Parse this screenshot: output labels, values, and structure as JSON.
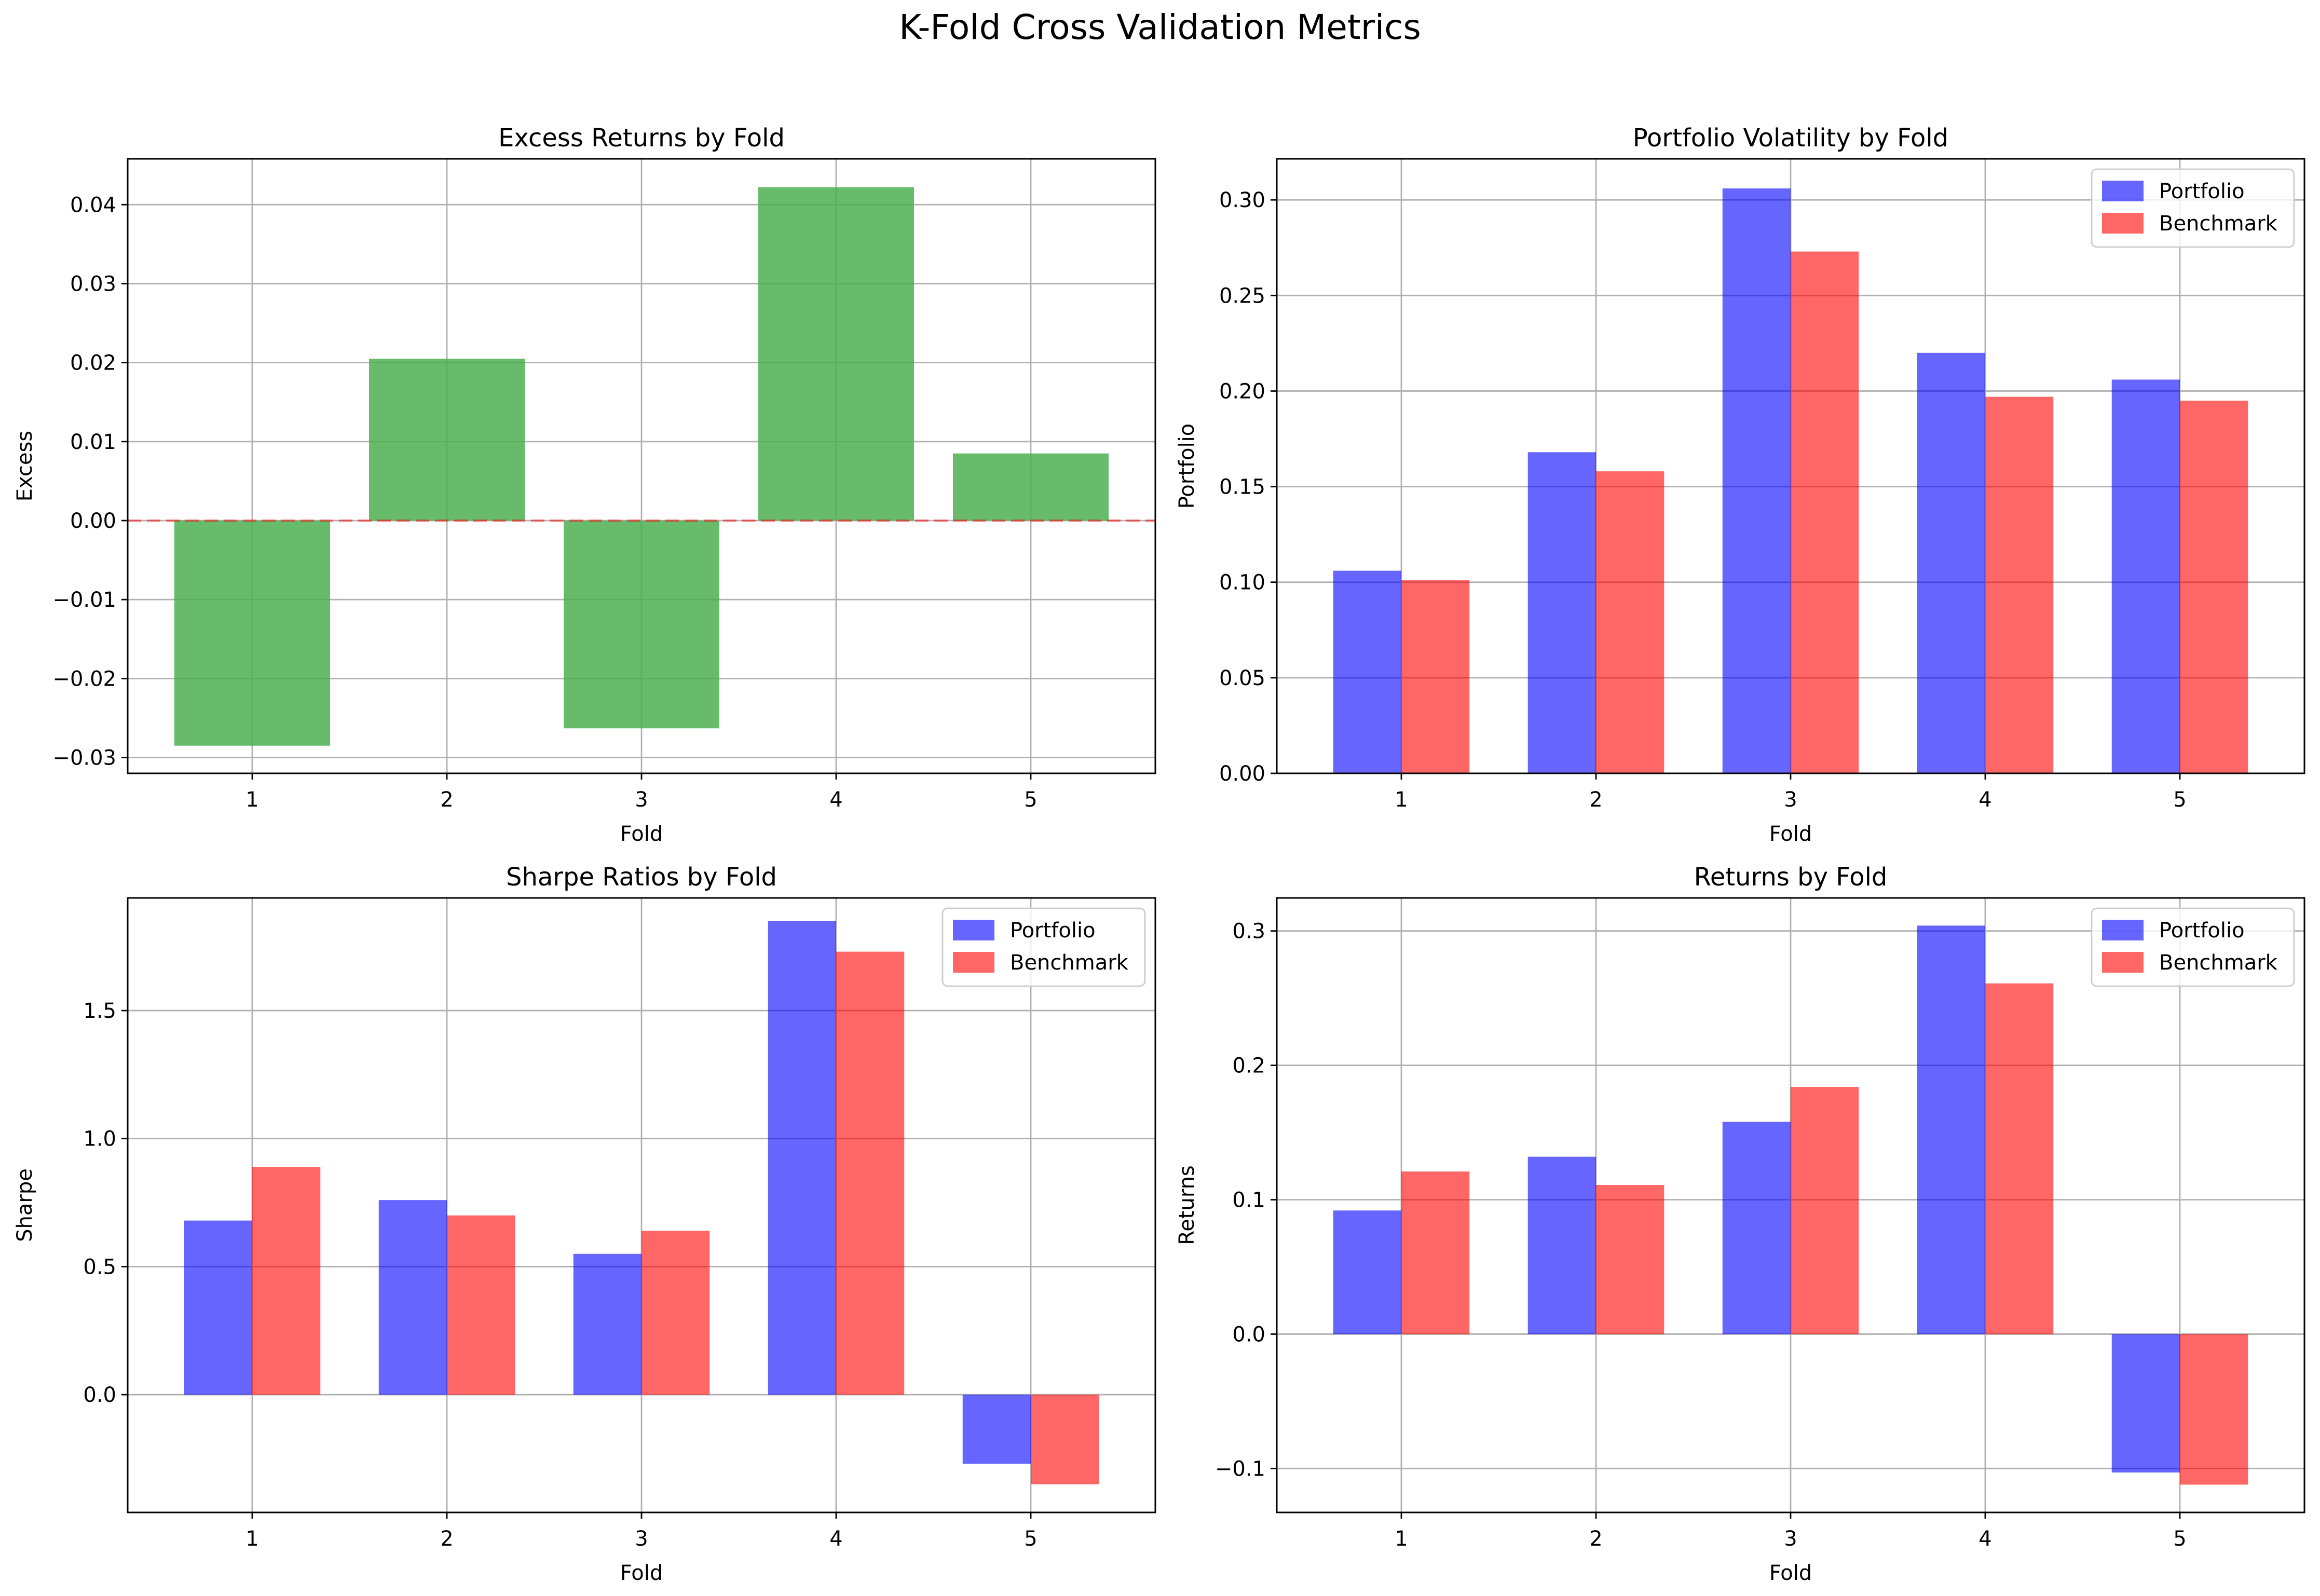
{
  "figure_title": "K-Fold Cross Validation Metrics",
  "colors": {
    "bar_single": "#4CAF50",
    "portfolio": "#0000ff",
    "benchmark": "#ff0000",
    "zero_line": "#ff0000",
    "grid": "#b0b0b0"
  },
  "chart_data": [
    {
      "type": "bar",
      "title": "Excess Returns by Fold",
      "xlabel": "Fold",
      "ylabel": "Excess",
      "categories": [
        "1",
        "2",
        "3",
        "4",
        "5"
      ],
      "values": [
        -0.0285,
        0.0205,
        -0.0263,
        0.0422,
        0.0085
      ],
      "ylim": [
        -0.032,
        0.0458
      ],
      "yticks": [
        -0.03,
        -0.02,
        -0.01,
        0.0,
        0.01,
        0.02,
        0.03,
        0.04
      ],
      "ytick_labels": [
        "−0.03",
        "−0.02",
        "−0.01",
        "0.00",
        "0.01",
        "0.02",
        "0.03",
        "0.04"
      ],
      "zero_line": true,
      "grid": true,
      "legend": "none"
    },
    {
      "type": "bar",
      "title": "Portfolio Volatility by Fold",
      "xlabel": "Fold",
      "ylabel": "Portfolio",
      "categories": [
        "1",
        "2",
        "3",
        "4",
        "5"
      ],
      "series": [
        {
          "name": "Portfolio",
          "values": [
            0.106,
            0.168,
            0.306,
            0.22,
            0.206
          ]
        },
        {
          "name": "Benchmark",
          "values": [
            0.101,
            0.158,
            0.273,
            0.197,
            0.195
          ]
        }
      ],
      "ylim": [
        0.0,
        0.3215
      ],
      "yticks": [
        0.0,
        0.05,
        0.1,
        0.15,
        0.2,
        0.25,
        0.3
      ],
      "ytick_labels": [
        "0.00",
        "0.05",
        "0.10",
        "0.15",
        "0.20",
        "0.25",
        "0.30"
      ],
      "grid": true,
      "legend": "top-right"
    },
    {
      "type": "bar",
      "title": "Sharpe Ratios by Fold",
      "xlabel": "Fold",
      "ylabel": "Sharpe",
      "categories": [
        "1",
        "2",
        "3",
        "4",
        "5"
      ],
      "series": [
        {
          "name": "Portfolio",
          "values": [
            0.68,
            0.76,
            0.55,
            1.85,
            -0.27
          ]
        },
        {
          "name": "Benchmark",
          "values": [
            0.89,
            0.7,
            0.64,
            1.73,
            -0.35
          ]
        }
      ],
      "ylim": [
        -0.46,
        1.94
      ],
      "yticks": [
        0.0,
        0.5,
        1.0,
        1.5
      ],
      "ytick_labels": [
        "0.0",
        "0.5",
        "1.0",
        "1.5"
      ],
      "grid": true,
      "legend": "top-right"
    },
    {
      "type": "bar",
      "title": "Returns by Fold",
      "xlabel": "Fold",
      "ylabel": "Returns",
      "categories": [
        "1",
        "2",
        "3",
        "4",
        "5"
      ],
      "series": [
        {
          "name": "Portfolio",
          "values": [
            0.092,
            0.132,
            0.158,
            0.304,
            -0.103
          ]
        },
        {
          "name": "Benchmark",
          "values": [
            0.121,
            0.111,
            0.184,
            0.261,
            -0.112
          ]
        }
      ],
      "ylim": [
        -0.1327,
        0.3246
      ],
      "yticks": [
        -0.1,
        0.0,
        0.1,
        0.2,
        0.3
      ],
      "ytick_labels": [
        "−0.1",
        "0.0",
        "0.1",
        "0.2",
        "0.3"
      ],
      "grid": true,
      "legend": "top-right"
    }
  ]
}
